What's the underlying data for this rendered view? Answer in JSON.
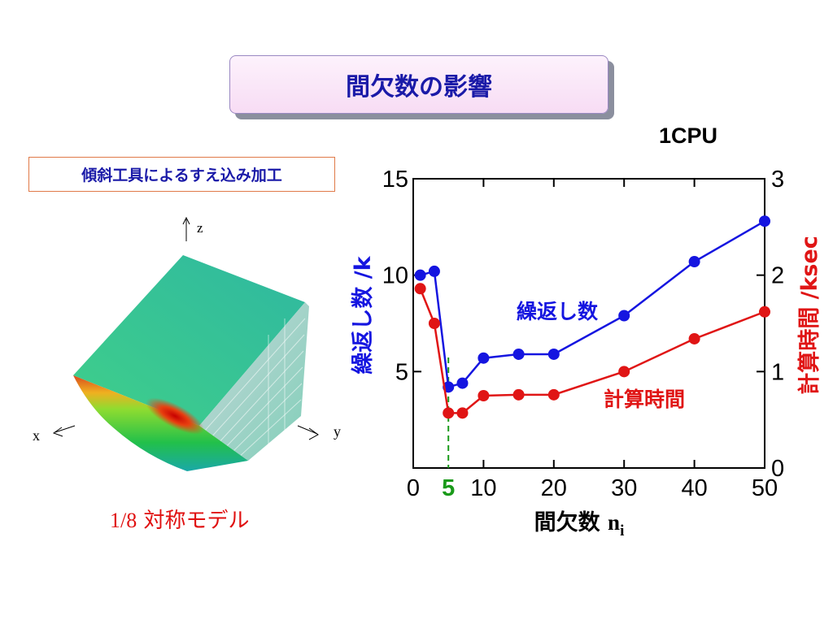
{
  "slide": {
    "title": "間欠数の影響",
    "cpu_label": "1CPU",
    "subtitle": "傾斜工具によるすえ込み加工",
    "model_caption_fraction": "1/8",
    "model_caption_text": "対称モデル",
    "axis_labels_3d": {
      "x": "x",
      "y": "y",
      "z": "z"
    }
  },
  "chart_data": {
    "type": "line",
    "xlabel": "間欠数",
    "xlabel_symbol": "n",
    "xlabel_subscript": "i",
    "xlim": [
      0,
      50
    ],
    "x_ticks": [
      0,
      10,
      20,
      30,
      40,
      50
    ],
    "highlight_x": 5,
    "highlight_color": "#1a9a1a",
    "ylabel_left": "繰返し数 /k",
    "ylim_left": [
      0,
      15
    ],
    "y_ticks_left": [
      5,
      10,
      15
    ],
    "ylabel_right": "計算時間 /ksec",
    "ylim_right": [
      0,
      3
    ],
    "y_ticks_right": [
      0,
      1,
      2,
      3
    ],
    "series": [
      {
        "name": "繰返し数",
        "axis": "left",
        "color": "#1515e0",
        "x": [
          1,
          3,
          5,
          7,
          10,
          15,
          20,
          30,
          40,
          50
        ],
        "values": [
          10.0,
          10.2,
          4.2,
          4.4,
          5.7,
          5.9,
          5.9,
          7.9,
          10.7,
          12.8
        ]
      },
      {
        "name": "計算時間",
        "axis": "right",
        "color": "#e01515",
        "x": [
          1,
          3,
          5,
          7,
          10,
          15,
          20,
          30,
          40,
          50
        ],
        "values": [
          1.86,
          1.5,
          0.57,
          0.57,
          0.75,
          0.76,
          0.76,
          1.0,
          1.34,
          1.62
        ]
      }
    ]
  }
}
